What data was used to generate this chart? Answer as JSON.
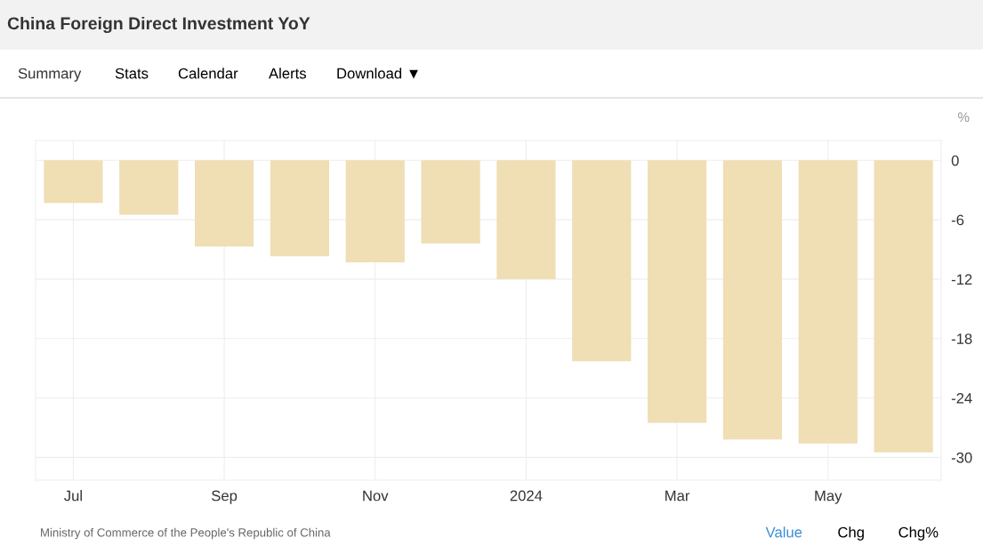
{
  "chart_data": {
    "type": "bar",
    "title": "China Foreign Direct Investment YoY",
    "ylabel": "%",
    "categories": [
      "Jul",
      null,
      "Sep",
      null,
      "Nov",
      null,
      "2024",
      null,
      "Mar",
      null,
      "May",
      null
    ],
    "values": [
      -4.3,
      -5.5,
      -8.7,
      -9.7,
      -10.3,
      -8.4,
      -12.0,
      -20.3,
      -26.5,
      -28.2,
      -28.6,
      -29.5
    ],
    "color": "#f0deb4",
    "ylim": [
      -32.3,
      2
    ],
    "yticks": [
      0,
      -6,
      -12,
      -18,
      -24,
      -30
    ],
    "grid": true,
    "annotations": [
      "Summary",
      "Stats",
      "Calendar",
      "Alerts",
      "Download ▼",
      "Ministry of Commerce of the People's Republic of China",
      "Value",
      "Chg",
      "Chg%"
    ]
  }
}
